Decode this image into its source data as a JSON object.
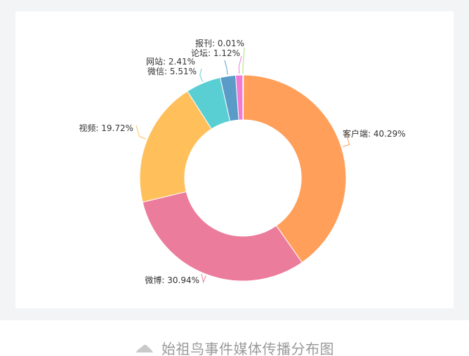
{
  "chart_data": {
    "type": "pie",
    "variant": "donut",
    "slices": [
      {
        "label": "客户端",
        "value": 40.29,
        "display": "客户端: 40.29%",
        "color": "#FF9F5A"
      },
      {
        "label": "微博",
        "value": 30.94,
        "display": "微博: 30.94%",
        "color": "#EC7C9B"
      },
      {
        "label": "视频",
        "value": 19.72,
        "display": "视频: 19.72%",
        "color": "#FFC05C"
      },
      {
        "label": "微信",
        "value": 5.51,
        "display": "微信: 5.51%",
        "color": "#5ACFD3"
      },
      {
        "label": "网站",
        "value": 2.41,
        "display": "网站: 2.41%",
        "color": "#5B9BC8"
      },
      {
        "label": "论坛",
        "value": 1.12,
        "display": "论坛: 1.12%",
        "color": "#F07AD4"
      },
      {
        "label": "报刊",
        "value": 0.01,
        "display": "报刊: 0.01%",
        "color": "#A5E36E"
      }
    ],
    "title": "",
    "legend": "none"
  },
  "caption": {
    "icon": "triangle-icon",
    "text": "始祖鸟事件媒体传播分布图"
  }
}
